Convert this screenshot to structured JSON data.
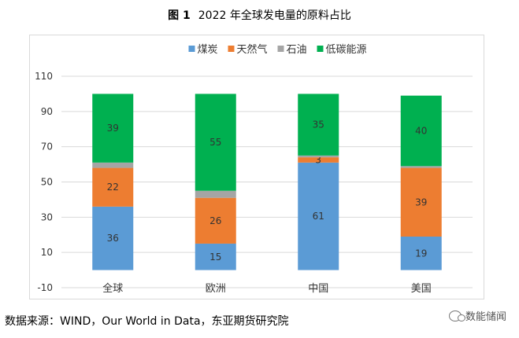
{
  "title": {
    "prefix": "图 1",
    "text": "2022 年全球发电量的原料占比"
  },
  "source_text": "数据来源：WIND，Our World in Data，东亚期货研究院",
  "watermark_text": "数能储闻",
  "chart_data": {
    "type": "bar",
    "stacked": true,
    "categories": [
      "全球",
      "欧洲",
      "中国",
      "美国"
    ],
    "series": [
      {
        "name": "煤炭",
        "color": "#5b9bd5",
        "values": [
          36,
          15,
          61,
          19
        ],
        "labels": [
          "36",
          "15",
          "61",
          "19"
        ]
      },
      {
        "name": "天然气",
        "color": "#ed7d31",
        "values": [
          22,
          26,
          3,
          39
        ],
        "labels": [
          "22",
          "26",
          "3",
          "39"
        ]
      },
      {
        "name": "石油",
        "color": "#a5a5a5",
        "values": [
          3,
          4,
          1,
          1
        ],
        "labels": [
          "",
          "",
          "",
          ""
        ]
      },
      {
        "name": "低碳能源",
        "color": "#00b050",
        "values": [
          39,
          55,
          35,
          40
        ],
        "labels": [
          "39",
          "55",
          "35",
          "40"
        ]
      }
    ],
    "yticks": [
      -10,
      10,
      30,
      50,
      70,
      90,
      110
    ],
    "ylim": [
      -10,
      110
    ],
    "grid": true,
    "legend": "top-center"
  }
}
